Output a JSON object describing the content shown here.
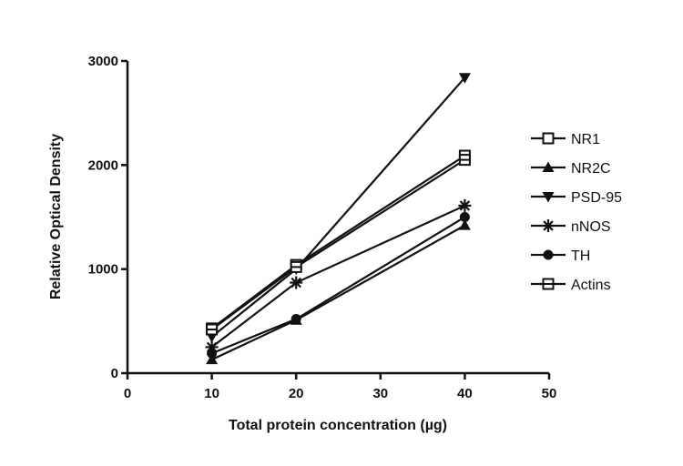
{
  "chart_data": {
    "type": "line",
    "title": "",
    "xlabel": "Total protein concentration (µg)",
    "ylabel": "Relative Optical Density",
    "xlim": [
      0,
      50
    ],
    "ylim": [
      0,
      3000
    ],
    "x_ticks": [
      0,
      10,
      20,
      30,
      40,
      50
    ],
    "y_ticks": [
      0,
      1000,
      2000,
      3000
    ],
    "grid": false,
    "legend_position": "right",
    "x": [
      10,
      20,
      40
    ],
    "series": [
      {
        "name": "NR1",
        "marker": "square-open",
        "values": [
          430,
          1040,
          2090
        ]
      },
      {
        "name": "NR2C",
        "marker": "triangle-up",
        "values": [
          130,
          510,
          1420
        ]
      },
      {
        "name": "PSD-95",
        "marker": "triangle-down",
        "values": [
          350,
          1000,
          2840
        ]
      },
      {
        "name": "nNOS",
        "marker": "asterisk",
        "values": [
          250,
          870,
          1610
        ]
      },
      {
        "name": "TH",
        "marker": "circle",
        "values": [
          190,
          520,
          1500
        ]
      },
      {
        "name": "Actins",
        "marker": "square-halved",
        "values": [
          420,
          1020,
          2050
        ]
      }
    ]
  }
}
